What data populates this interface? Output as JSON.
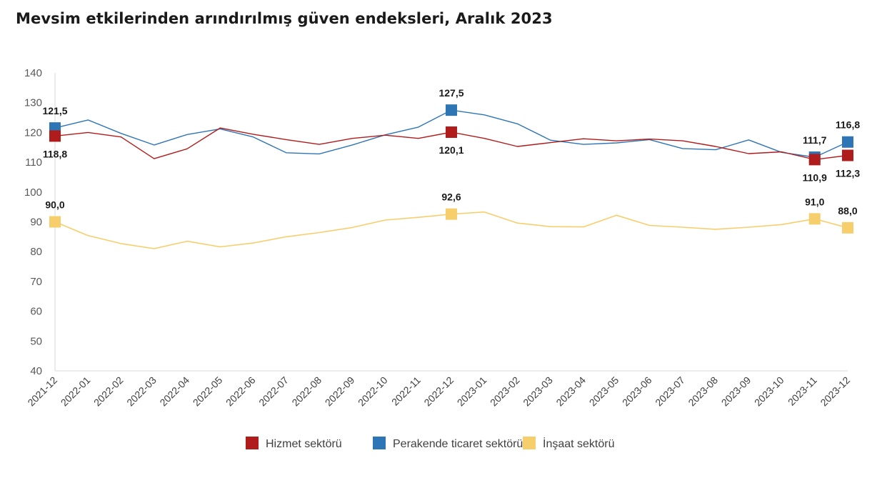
{
  "title": "Mevsim etkilerinden arındırılmış güven endeksleri, Aralık 2023",
  "chart_data": {
    "type": "line",
    "categories": [
      "2021-12",
      "2022-01",
      "2022-02",
      "2022-03",
      "2022-04",
      "2022-05",
      "2022-06",
      "2022-07",
      "2022-08",
      "2022-09",
      "2022-10",
      "2022-11",
      "2022-12",
      "2023-01",
      "2023-02",
      "2023-03",
      "2023-04",
      "2023-05",
      "2023-06",
      "2023-07",
      "2023-08",
      "2023-09",
      "2023-10",
      "2023-11",
      "2023-12"
    ],
    "ylim": [
      40,
      140
    ],
    "yticks": [
      "40",
      "50",
      "60",
      "70",
      "80",
      "90",
      "100",
      "110",
      "120",
      "130",
      "140"
    ],
    "series": [
      {
        "name": "Hizmet sektörü",
        "color": "#b01c1c",
        "values": [
          118.8,
          120.0,
          118.5,
          111.2,
          114.5,
          121.5,
          119.4,
          117.6,
          116.0,
          118.0,
          119.1,
          118.0,
          120.1,
          118.0,
          115.3,
          116.6,
          117.9,
          117.2,
          117.8,
          117.2,
          115.3,
          112.9,
          113.5,
          110.9,
          112.3
        ]
      },
      {
        "name": "Perakende ticaret sektörü",
        "color": "#2e75b6",
        "values": [
          121.5,
          124.2,
          119.7,
          115.8,
          119.3,
          121.2,
          118.5,
          113.2,
          112.8,
          115.8,
          119.2,
          121.8,
          127.5,
          125.9,
          122.9,
          117.4,
          116.0,
          116.5,
          117.6,
          114.6,
          114.2,
          117.5,
          113.3,
          111.7,
          116.8
        ]
      },
      {
        "name": "İnşaat sektörü",
        "color": "#f7ce6c",
        "values": [
          90.0,
          85.4,
          82.7,
          81.0,
          83.5,
          81.6,
          82.9,
          85.0,
          86.4,
          88.1,
          90.6,
          91.5,
          92.6,
          93.3,
          89.6,
          88.4,
          88.3,
          92.2,
          88.8,
          88.2,
          87.5,
          88.2,
          89.1,
          91.0,
          88.0
        ]
      }
    ],
    "annotations": [
      {
        "series": 1,
        "index": 0,
        "text": "121,5",
        "pos": "above"
      },
      {
        "series": 0,
        "index": 0,
        "text": "118,8",
        "pos": "below"
      },
      {
        "series": 1,
        "index": 12,
        "text": "127,5",
        "pos": "above"
      },
      {
        "series": 0,
        "index": 12,
        "text": "120,1",
        "pos": "below"
      },
      {
        "series": 1,
        "index": 23,
        "text": "111,7",
        "pos": "above"
      },
      {
        "series": 0,
        "index": 23,
        "text": "110,9",
        "pos": "below"
      },
      {
        "series": 1,
        "index": 24,
        "text": "116,8",
        "pos": "above"
      },
      {
        "series": 0,
        "index": 24,
        "text": "112,3",
        "pos": "below"
      },
      {
        "series": 2,
        "index": 0,
        "text": "90,0",
        "pos": "above"
      },
      {
        "series": 2,
        "index": 12,
        "text": "92,6",
        "pos": "above"
      },
      {
        "series": 2,
        "index": 23,
        "text": "91,0",
        "pos": "above"
      },
      {
        "series": 2,
        "index": 24,
        "text": "88,0",
        "pos": "above"
      }
    ],
    "markers": [
      {
        "series": 1,
        "indices": [
          0,
          12,
          23,
          24
        ]
      },
      {
        "series": 0,
        "indices": [
          0,
          12,
          23,
          24
        ]
      },
      {
        "series": 2,
        "indices": [
          0,
          12,
          23,
          24
        ]
      }
    ],
    "legend": {
      "position": "bottom"
    },
    "grid": false
  }
}
